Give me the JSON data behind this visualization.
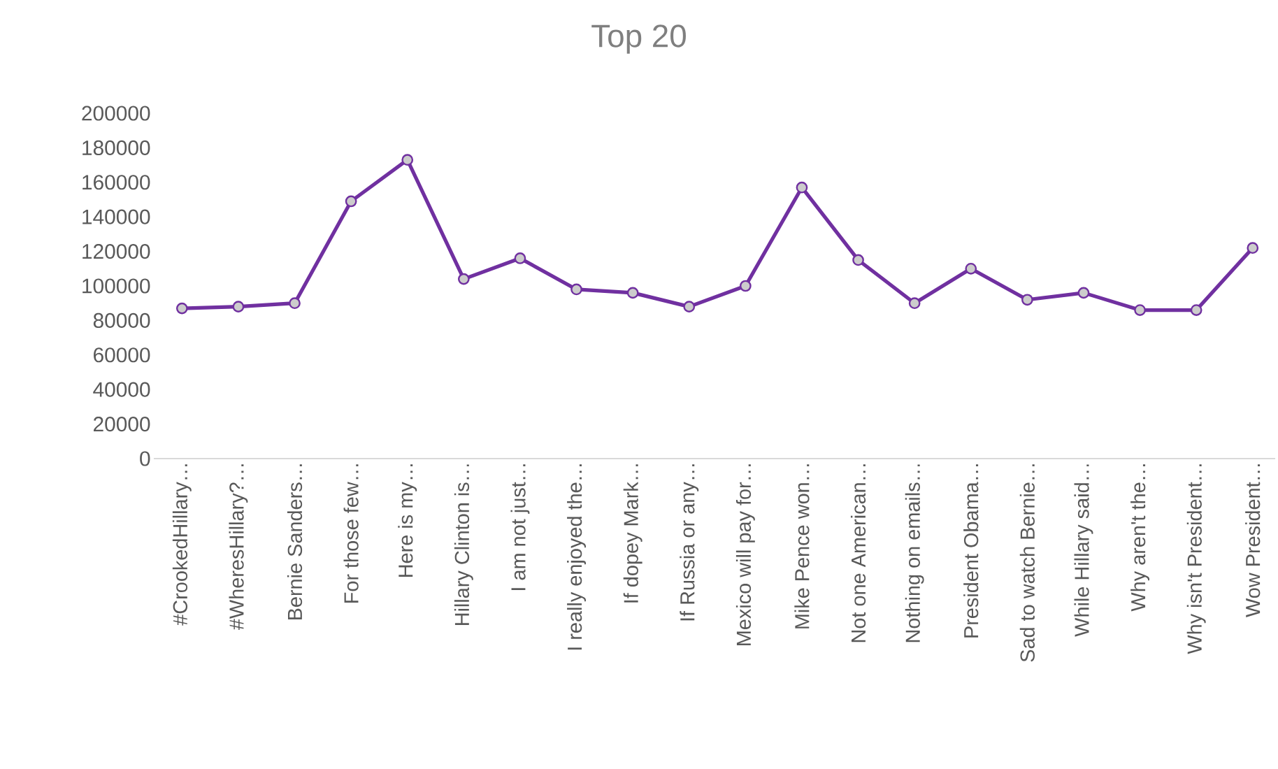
{
  "chart_data": {
    "type": "line",
    "title": "Top 20",
    "categories": [
      "#CrookedHillary…",
      "#WheresHillary?…",
      "Bernie Sanders…",
      "For those few…",
      "Here is my…",
      "Hillary Clinton is…",
      "I am not just…",
      "I really enjoyed the…",
      "If dopey Mark…",
      "If Russia or any…",
      "Mexico will pay for…",
      "Mike Pence won…",
      "Not one American…",
      "Nothing on emails…",
      "President Obama…",
      "Sad to watch Bernie…",
      "While Hillary said…",
      "Why aren't the…",
      "Why isn't President…",
      "Wow President…"
    ],
    "series": [
      {
        "color": "#7030a0",
        "values": [
          87000,
          88000,
          90000,
          149000,
          173000,
          104000,
          116000,
          98000,
          96000,
          88000,
          100000,
          157000,
          115000,
          90000,
          110000,
          92000,
          96000,
          86000,
          86000,
          122000
        ]
      }
    ],
    "ylim": [
      0,
      200000
    ],
    "yticks": [
      0,
      20000,
      40000,
      60000,
      80000,
      100000,
      120000,
      140000,
      160000,
      180000,
      200000
    ],
    "marker": "circle",
    "line_style": "solid"
  }
}
